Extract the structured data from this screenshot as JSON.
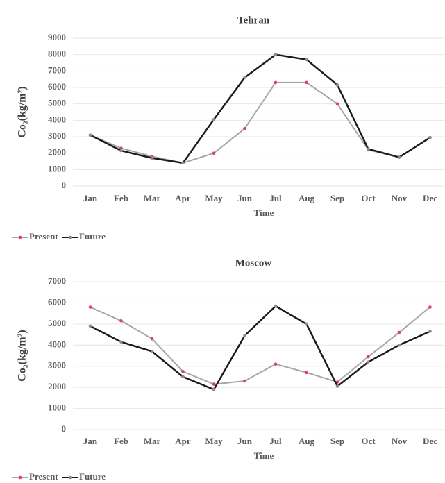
{
  "chart_data": [
    {
      "type": "line",
      "title": "Tehran",
      "x_label": "Time",
      "y_label": "Co₂(kg/m²)",
      "categories": [
        "Jan",
        "Feb",
        "Mar",
        "Apr",
        "May",
        "Jun",
        "Jul",
        "Aug",
        "Sep",
        "Oct",
        "Nov",
        "Dec"
      ],
      "series": [
        {
          "name": "Present",
          "color": "#a6a6a6",
          "marker_color": "#e0405a",
          "values": [
            3100,
            2300,
            1800,
            1400,
            2000,
            3500,
            6300,
            6300,
            5000,
            2200,
            1750,
            2950
          ]
        },
        {
          "name": "Future",
          "color": "#1a1a1a",
          "marker_color": "#8c8c8c",
          "values": [
            3100,
            2150,
            1700,
            1400,
            4050,
            6600,
            8000,
            7700,
            6150,
            2250,
            1750,
            2950
          ]
        }
      ],
      "ylim": [
        0,
        9000
      ],
      "yticks": [
        0,
        1000,
        2000,
        3000,
        4000,
        5000,
        6000,
        7000,
        8000,
        9000
      ],
      "grid": true,
      "legend": "bottom-left"
    },
    {
      "type": "line",
      "title": "Moscow",
      "x_label": "Time",
      "y_label": "Co₂(kg/m²)",
      "categories": [
        "Jan",
        "Feb",
        "Mar",
        "Apr",
        "May",
        "Jun",
        "Jul",
        "Aug",
        "Sep",
        "Oct",
        "Nov",
        "Dec"
      ],
      "series": [
        {
          "name": "Present",
          "color": "#a6a6a6",
          "marker_color": "#e0405a",
          "values": [
            5800,
            5150,
            4300,
            2750,
            2150,
            2300,
            3100,
            2700,
            2250,
            3450,
            4600,
            5800
          ]
        },
        {
          "name": "Future",
          "color": "#1a1a1a",
          "marker_color": "#8c8c8c",
          "values": [
            4900,
            4150,
            3700,
            2500,
            1900,
            4450,
            5850,
            5000,
            2050,
            3200,
            4000,
            4650
          ]
        }
      ],
      "ylim": [
        0,
        7000
      ],
      "yticks": [
        0,
        1000,
        2000,
        3000,
        4000,
        5000,
        6000,
        7000
      ],
      "grid": true,
      "legend": "bottom-left"
    }
  ]
}
